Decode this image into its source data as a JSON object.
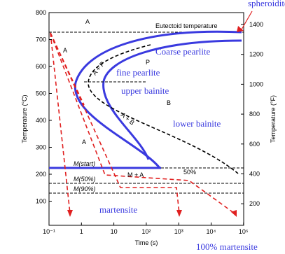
{
  "labels": {
    "spheroidite": "spheroidite",
    "eutectoid": "Eutectoid temperature",
    "a_top": "A",
    "a_left": "A",
    "coarse": "Coarse pearlite",
    "p": "P",
    "ap": "A + P",
    "fine": "fine pearlite",
    "upper": "upper bainite",
    "b": "B",
    "ab": "A + B",
    "lower": "lower bainite",
    "a_mid": "A",
    "mstart": "M(start)",
    "m50": "M(50%)",
    "m90": "M(90%)",
    "ma": "M + A",
    "pct50": "50%",
    "martensite": "martensite",
    "full_martensite": "100% martensite"
  },
  "axes": {
    "left_title": "Temperature (°C)",
    "right_title": "Temperature (°F)",
    "bottom_title": "Time (s)",
    "left_ticks": [
      "800",
      "700",
      "600",
      "500",
      "400",
      "300",
      "200",
      "100"
    ],
    "right_ticks": [
      "1400",
      "1200",
      "1000",
      "800",
      "600",
      "400",
      "200"
    ],
    "bottom_ticks": [
      "10⁻¹",
      "1",
      "10",
      "10²",
      "10³",
      "10⁴",
      "10⁵"
    ]
  }
}
